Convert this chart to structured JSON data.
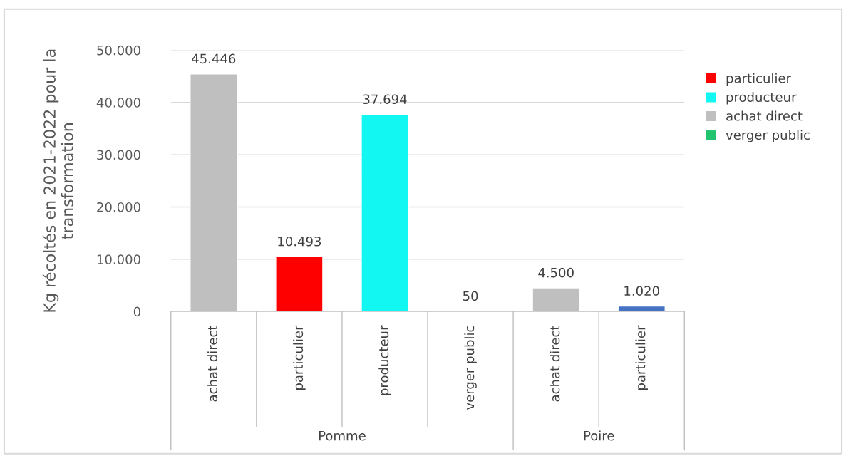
{
  "chart_data": {
    "type": "bar",
    "ylabel": "Kg récoltés en 2021-2022 pour la transformation",
    "categories": [
      "achat direct",
      "particulier",
      "producteur",
      "verger public",
      "achat direct",
      "particulier"
    ],
    "series": [
      {
        "name": "particulier",
        "color": "#ff0000",
        "values": [
          null,
          10493,
          null,
          null,
          null,
          null
        ],
        "value_labels": [
          null,
          "10.493",
          null,
          null,
          null,
          null
        ]
      },
      {
        "name": "producteur",
        "color": "#13f7f3",
        "values": [
          null,
          null,
          37694,
          null,
          null,
          null
        ],
        "value_labels": [
          null,
          null,
          "37.694",
          null,
          null,
          null
        ]
      },
      {
        "name": "achat direct",
        "color": "#bfbfbf",
        "values": [
          45446,
          null,
          null,
          null,
          4500,
          null
        ],
        "value_labels": [
          "45.446",
          null,
          null,
          null,
          "4.500",
          null
        ]
      },
      {
        "name": "verger public",
        "color": "#21c46e",
        "values": [
          null,
          null,
          null,
          50,
          null,
          null
        ],
        "value_labels": [
          null,
          null,
          null,
          "50",
          null,
          null
        ]
      },
      {
        "color": "#4472c4",
        "values": [
          null,
          null,
          null,
          null,
          null,
          1020
        ],
        "value_labels": [
          null,
          null,
          null,
          null,
          null,
          "1.020"
        ]
      }
    ],
    "ylim": [
      0,
      50000
    ],
    "yticks": [
      {
        "value": 0,
        "label": "0"
      },
      {
        "value": 10000,
        "label": "10.000"
      },
      {
        "value": 20000,
        "label": "20.000"
      },
      {
        "value": 30000,
        "label": "30.000"
      },
      {
        "value": 40000,
        "label": "40.000"
      },
      {
        "value": 50000,
        "label": "50.000"
      }
    ],
    "annotations": [
      "Pomme",
      "Poire"
    ],
    "grid": "y",
    "legend": "right"
  }
}
